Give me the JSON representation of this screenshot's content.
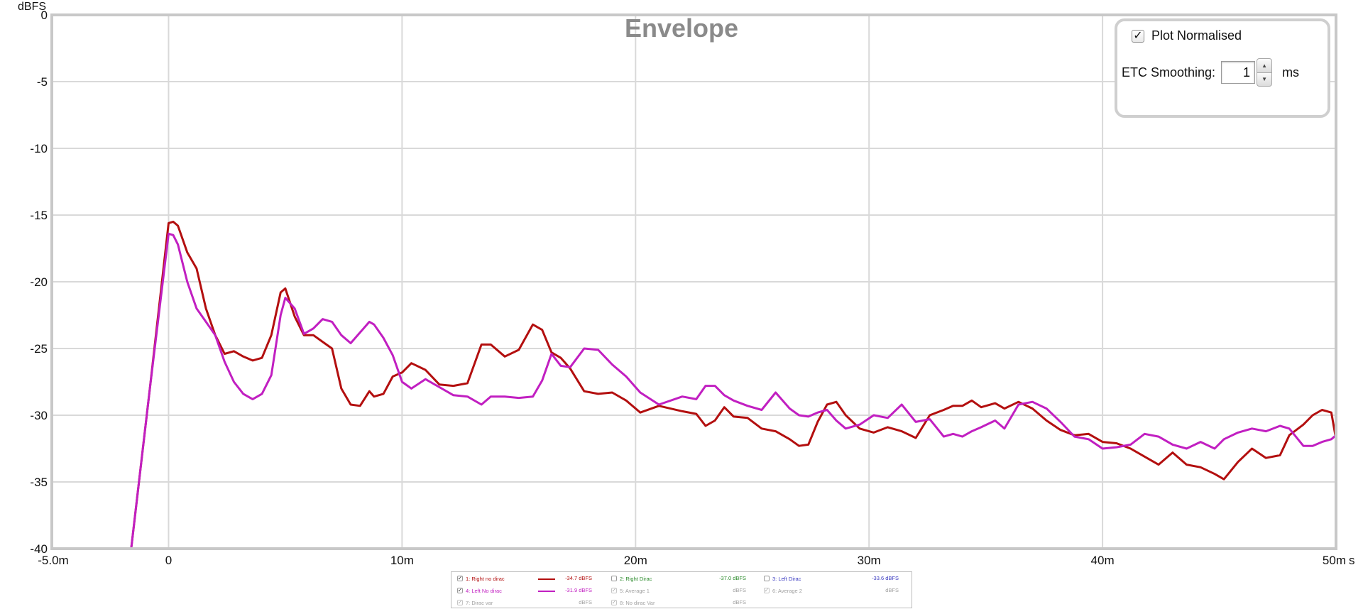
{
  "chart_data": {
    "type": "line",
    "title": "Envelope",
    "ylabel": "dBFS",
    "xlabel": "s",
    "xlim": [
      -0.005,
      0.05
    ],
    "ylim": [
      -40,
      0
    ],
    "x_ticks": [
      {
        "value": -0.005,
        "label": "-5.0m"
      },
      {
        "value": 0,
        "label": "0"
      },
      {
        "value": 0.01,
        "label": "10m"
      },
      {
        "value": 0.02,
        "label": "20m"
      },
      {
        "value": 0.03,
        "label": "30m"
      },
      {
        "value": 0.04,
        "label": "40m"
      },
      {
        "value": 0.05,
        "label": "50m"
      }
    ],
    "y_ticks": [
      {
        "value": 0,
        "label": "0"
      },
      {
        "value": -5,
        "label": "-5"
      },
      {
        "value": -10,
        "label": "-10"
      },
      {
        "value": -15,
        "label": "-15"
      },
      {
        "value": -20,
        "label": "-20"
      },
      {
        "value": -25,
        "label": "-25"
      },
      {
        "value": -30,
        "label": "-30"
      },
      {
        "value": -35,
        "label": "-35"
      },
      {
        "value": -40,
        "label": "-40"
      }
    ],
    "grid": true,
    "series": [
      {
        "name": "1: Right no dirac",
        "color": "#b30f0f",
        "x": [
          -0.0016,
          -0.0008,
          0,
          0.0002,
          0.0004,
          0.0008,
          0.0012,
          0.0016,
          0.002,
          0.0024,
          0.0028,
          0.0032,
          0.0036,
          0.004,
          0.0044,
          0.0048,
          0.005,
          0.0054,
          0.0058,
          0.0062,
          0.0066,
          0.007,
          0.0074,
          0.0078,
          0.0082,
          0.0086,
          0.0088,
          0.0092,
          0.0096,
          0.01,
          0.0104,
          0.011,
          0.0116,
          0.0122,
          0.0128,
          0.0134,
          0.0138,
          0.0144,
          0.015,
          0.0156,
          0.016,
          0.0164,
          0.0168,
          0.0172,
          0.0178,
          0.0184,
          0.019,
          0.0196,
          0.0202,
          0.021,
          0.022,
          0.0226,
          0.023,
          0.0234,
          0.0238,
          0.0242,
          0.0248,
          0.0254,
          0.026,
          0.0266,
          0.027,
          0.0274,
          0.0278,
          0.0282,
          0.0286,
          0.029,
          0.0296,
          0.0302,
          0.0308,
          0.0314,
          0.032,
          0.0326,
          0.0332,
          0.0336,
          0.034,
          0.0344,
          0.0348,
          0.0354,
          0.0358,
          0.0364,
          0.037,
          0.0376,
          0.0382,
          0.0388,
          0.0394,
          0.04,
          0.0406,
          0.0412,
          0.0418,
          0.0424,
          0.043,
          0.0436,
          0.0442,
          0.0448,
          0.0452,
          0.0458,
          0.0464,
          0.047,
          0.0476,
          0.048,
          0.0486,
          0.049,
          0.0494,
          0.0498,
          0.05
        ],
        "y": [
          -40,
          -28,
          -15.6,
          -15.5,
          -15.8,
          -17.8,
          -19,
          -22,
          -24,
          -25.4,
          -25.2,
          -25.6,
          -25.9,
          -25.7,
          -24,
          -20.8,
          -20.5,
          -22.6,
          -24,
          -24,
          -24.5,
          -25,
          -28,
          -29.2,
          -29.3,
          -28.2,
          -28.6,
          -28.4,
          -27.1,
          -26.8,
          -26.1,
          -26.6,
          -27.7,
          -27.8,
          -27.6,
          -24.7,
          -24.7,
          -25.6,
          -25.1,
          -23.2,
          -23.6,
          -25.3,
          -25.7,
          -26.5,
          -28.2,
          -28.4,
          -28.3,
          -28.9,
          -29.8,
          -29.3,
          -29.7,
          -29.9,
          -30.8,
          -30.4,
          -29.4,
          -30.1,
          -30.2,
          -31,
          -31.2,
          -31.8,
          -32.3,
          -32.2,
          -30.5,
          -29.2,
          -29,
          -30,
          -31,
          -31.3,
          -30.9,
          -31.2,
          -31.7,
          -30,
          -29.6,
          -29.3,
          -29.3,
          -28.9,
          -29.4,
          -29.1,
          -29.5,
          -29,
          -29.5,
          -30.4,
          -31.1,
          -31.5,
          -31.4,
          -32,
          -32.1,
          -32.5,
          -33.1,
          -33.7,
          -32.8,
          -33.7,
          -33.9,
          -34.4,
          -34.8,
          -33.5,
          -32.5,
          -33.2,
          -33,
          -31.5,
          -30.7,
          -30,
          -29.6,
          -29.8,
          -31.8
        ]
      },
      {
        "name": "4: Left No dirac",
        "color": "#c11fc1",
        "x": [
          -0.0016,
          -0.0008,
          0,
          0.0002,
          0.0004,
          0.0008,
          0.0012,
          0.0016,
          0.002,
          0.0024,
          0.0028,
          0.0032,
          0.0036,
          0.004,
          0.0044,
          0.0048,
          0.005,
          0.0054,
          0.0058,
          0.0062,
          0.0066,
          0.007,
          0.0074,
          0.0078,
          0.0082,
          0.0086,
          0.0088,
          0.0092,
          0.0096,
          0.01,
          0.0104,
          0.011,
          0.0116,
          0.0122,
          0.0128,
          0.0134,
          0.0138,
          0.0144,
          0.015,
          0.0156,
          0.016,
          0.0164,
          0.0168,
          0.0172,
          0.0178,
          0.0184,
          0.019,
          0.0196,
          0.0202,
          0.021,
          0.022,
          0.0226,
          0.023,
          0.0234,
          0.0238,
          0.0242,
          0.0248,
          0.0254,
          0.026,
          0.0266,
          0.027,
          0.0274,
          0.0278,
          0.0282,
          0.0286,
          0.029,
          0.0296,
          0.0302,
          0.0308,
          0.0314,
          0.032,
          0.0326,
          0.0332,
          0.0336,
          0.034,
          0.0344,
          0.0348,
          0.0354,
          0.0358,
          0.0364,
          0.037,
          0.0376,
          0.0382,
          0.0388,
          0.0394,
          0.04,
          0.0406,
          0.0412,
          0.0418,
          0.0424,
          0.043,
          0.0436,
          0.0442,
          0.0448,
          0.0452,
          0.0458,
          0.0464,
          0.047,
          0.0476,
          0.048,
          0.0486,
          0.049,
          0.0494,
          0.0498,
          0.05
        ],
        "y": [
          -40,
          -28,
          -16.4,
          -16.5,
          -17.2,
          -20,
          -22,
          -23,
          -24,
          -26,
          -27.5,
          -28.4,
          -28.8,
          -28.4,
          -27,
          -22.5,
          -21.2,
          -22,
          -23.9,
          -23.5,
          -22.8,
          -23,
          -24,
          -24.6,
          -23.8,
          -23,
          -23.2,
          -24.2,
          -25.5,
          -27.5,
          -28,
          -27.3,
          -27.9,
          -28.5,
          -28.6,
          -29.2,
          -28.6,
          -28.6,
          -28.7,
          -28.6,
          -27.4,
          -25.4,
          -26.3,
          -26.4,
          -25,
          -25.1,
          -26.2,
          -27.1,
          -28.3,
          -29.2,
          -28.6,
          -28.8,
          -27.8,
          -27.8,
          -28.5,
          -28.9,
          -29.3,
          -29.6,
          -28.3,
          -29.5,
          -30,
          -30.1,
          -29.8,
          -29.6,
          -30.4,
          -31,
          -30.7,
          -30,
          -30.2,
          -29.2,
          -30.5,
          -30.3,
          -31.6,
          -31.4,
          -31.6,
          -31.2,
          -30.9,
          -30.4,
          -31,
          -29.2,
          -29,
          -29.5,
          -30.5,
          -31.6,
          -31.8,
          -32.5,
          -32.4,
          -32.2,
          -31.4,
          -31.6,
          -32.2,
          -32.5,
          -32,
          -32.5,
          -31.8,
          -31.3,
          -31,
          -31.2,
          -30.8,
          -31,
          -32.3,
          -32.3,
          -32,
          -31.8,
          -31.5
        ]
      }
    ]
  },
  "settings": {
    "plot_normalised_label": "Plot Normalised",
    "plot_normalised_checked": true,
    "etc_smoothing_label": "ETC Smoothing:",
    "etc_smoothing_value": "1",
    "etc_smoothing_unit": "ms"
  },
  "legend": {
    "items": [
      {
        "name": "1: Right no dirac",
        "value": "-34.7 dBFS",
        "color": "#b30f0f",
        "checked": true,
        "show_line": true
      },
      {
        "name": "2: Right Dirac",
        "value": "-37.0 dBFS",
        "color": "#2a8a2a",
        "checked": false,
        "show_line": false
      },
      {
        "name": "3: Left Dirac",
        "value": "-33.6 dBFS",
        "color": "#3a3ac0",
        "checked": false,
        "show_line": false
      },
      {
        "name": "4: Left No dirac",
        "value": "-31.9 dBFS",
        "color": "#c11fc1",
        "checked": true,
        "show_line": true
      },
      {
        "name": "5: Average 1",
        "value": "dBFS",
        "color": "#a0a0a0",
        "checked": true,
        "show_line": false
      },
      {
        "name": "6: Average 2",
        "value": "dBFS",
        "color": "#a0a0a0",
        "checked": true,
        "show_line": false
      },
      {
        "name": "7: Dirac var",
        "value": "dBFS",
        "color": "#a0a0a0",
        "checked": true,
        "show_line": false
      },
      {
        "name": "8: No dirac Var",
        "value": "dBFS",
        "color": "#a0a0a0",
        "checked": true,
        "show_line": false
      }
    ]
  }
}
